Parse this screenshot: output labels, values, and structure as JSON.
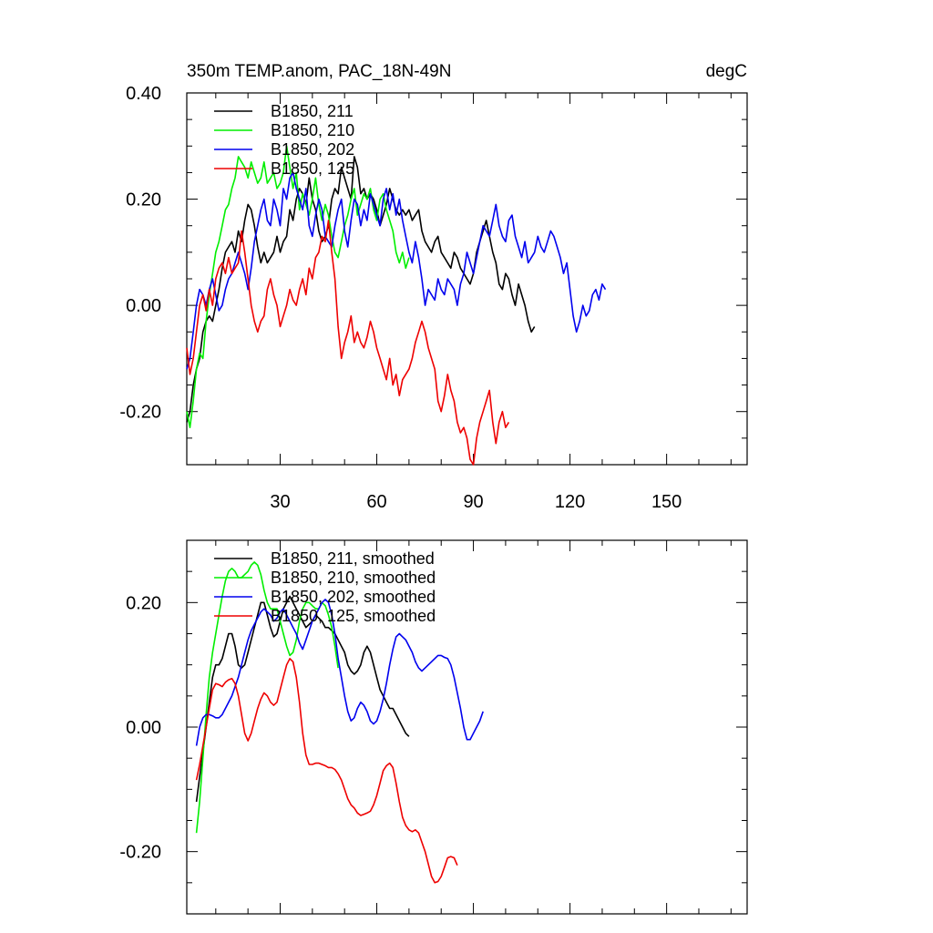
{
  "chart_data": [
    {
      "type": "line",
      "title_left": "350m TEMP.anom, PAC_18N-49N",
      "title_right": "degC",
      "xlim": [
        1,
        175
      ],
      "ylim": [
        -0.3,
        0.4
      ],
      "x_ticks": [
        30,
        60,
        90,
        120,
        150
      ],
      "x_tick_labels": [
        "30",
        "60",
        "90",
        "120",
        "150"
      ],
      "y_ticks": [
        -0.2,
        0.0,
        0.2,
        0.4
      ],
      "y_tick_labels": [
        "-0.20",
        "0.00",
        "0.20",
        "0.40"
      ],
      "legend_placement": "top-left",
      "series": [
        {
          "name": "B1850, 211",
          "color": "#000000",
          "x_start": 1,
          "values": [
            -0.22,
            -0.2,
            -0.15,
            -0.12,
            -0.1,
            -0.05,
            -0.03,
            -0.02,
            -0.03,
            0.0,
            0.03,
            0.07,
            0.1,
            0.11,
            0.12,
            0.1,
            0.14,
            0.12,
            0.16,
            0.19,
            0.18,
            0.15,
            0.11,
            0.08,
            0.1,
            0.08,
            0.09,
            0.1,
            0.13,
            0.1,
            0.12,
            0.13,
            0.18,
            0.16,
            0.2,
            0.22,
            0.21,
            0.19,
            0.24,
            0.2,
            0.18,
            0.14,
            0.12,
            0.13,
            0.15,
            0.2,
            0.22,
            0.21,
            0.26,
            0.24,
            0.22,
            0.2,
            0.28,
            0.26,
            0.21,
            0.22,
            0.2,
            0.21,
            0.2,
            0.18,
            0.15,
            0.17,
            0.19,
            0.22,
            0.2,
            0.18,
            0.17,
            0.18,
            0.17,
            0.18,
            0.16,
            0.17,
            0.18,
            0.14,
            0.12,
            0.11,
            0.1,
            0.12,
            0.13,
            0.1,
            0.09,
            0.08,
            0.07,
            0.1,
            0.09,
            0.07,
            0.06,
            0.05,
            0.04,
            0.06,
            0.1,
            0.12,
            0.14,
            0.16,
            0.13,
            0.1,
            0.08,
            0.04,
            0.03,
            0.06,
            0.05,
            0.02,
            0.0,
            0.04,
            0.02,
            0.0,
            -0.03,
            -0.05,
            -0.04
          ]
        },
        {
          "name": "B1850, 210",
          "color": "#00ee00",
          "x_start": 1,
          "values": [
            -0.2,
            -0.23,
            -0.18,
            -0.12,
            -0.09,
            -0.1,
            -0.03,
            0.02,
            0.06,
            0.1,
            0.12,
            0.15,
            0.18,
            0.19,
            0.22,
            0.24,
            0.28,
            0.27,
            0.26,
            0.24,
            0.27,
            0.25,
            0.23,
            0.24,
            0.27,
            0.23,
            0.24,
            0.25,
            0.22,
            0.23,
            0.25,
            0.3,
            0.26,
            0.22,
            0.25,
            0.18,
            0.21,
            0.19,
            0.17,
            0.2,
            0.24,
            0.19,
            0.16,
            0.19,
            0.17,
            0.13,
            0.1,
            0.09,
            0.12,
            0.15,
            0.17,
            0.2,
            0.22,
            0.17,
            0.19,
            0.21,
            0.2,
            0.22,
            0.18,
            0.16,
            0.2,
            0.21,
            0.18,
            0.16,
            0.14,
            0.1,
            0.08,
            0.1,
            0.07,
            0.09
          ]
        },
        {
          "name": "B1850, 202",
          "color": "#0000ee",
          "x_start": 1,
          "values": [
            -0.12,
            -0.1,
            -0.05,
            0.0,
            0.03,
            0.02,
            0.0,
            0.03,
            0.05,
            0.02,
            -0.01,
            0.0,
            0.03,
            0.05,
            0.06,
            0.08,
            0.1,
            0.08,
            0.06,
            0.03,
            0.07,
            0.12,
            0.15,
            0.18,
            0.2,
            0.16,
            0.15,
            0.2,
            0.18,
            0.15,
            0.22,
            0.2,
            0.24,
            0.25,
            0.22,
            0.2,
            0.18,
            0.22,
            0.15,
            0.13,
            0.17,
            0.2,
            0.18,
            0.13,
            0.12,
            0.11,
            0.15,
            0.18,
            0.2,
            0.14,
            0.11,
            0.16,
            0.2,
            0.19,
            0.15,
            0.18,
            0.16,
            0.21,
            0.19,
            0.17,
            0.15,
            0.2,
            0.22,
            0.18,
            0.21,
            0.17,
            0.2,
            0.16,
            0.13,
            0.1,
            0.08,
            0.12,
            0.09,
            0.05,
            0.0,
            0.03,
            0.02,
            0.01,
            0.05,
            0.03,
            0.02,
            0.05,
            0.04,
            0.03,
            0.0,
            0.04,
            0.06,
            0.1,
            0.08,
            0.06,
            0.09,
            0.12,
            0.15,
            0.14,
            0.13,
            0.16,
            0.19,
            0.15,
            0.13,
            0.12,
            0.16,
            0.17,
            0.13,
            0.11,
            0.09,
            0.12,
            0.08,
            0.09,
            0.1,
            0.13,
            0.11,
            0.1,
            0.12,
            0.14,
            0.13,
            0.11,
            0.09,
            0.06,
            0.08,
            0.03,
            -0.02,
            -0.05,
            -0.03,
            0.0,
            -0.02,
            -0.01,
            0.02,
            0.03,
            0.01,
            0.04,
            0.03
          ]
        },
        {
          "name": "B1850, 125",
          "color": "#ee0000",
          "x_start": 1,
          "values": [
            -0.08,
            -0.13,
            -0.1,
            -0.05,
            0.0,
            0.02,
            -0.01,
            0.03,
            0.0,
            0.05,
            0.07,
            0.08,
            0.06,
            0.09,
            0.06,
            0.07,
            0.08,
            0.14,
            0.1,
            0.05,
            0.0,
            -0.03,
            -0.05,
            -0.03,
            -0.02,
            0.03,
            0.05,
            0.02,
            0.0,
            -0.04,
            -0.02,
            0.0,
            0.03,
            0.01,
            0.0,
            0.03,
            0.05,
            0.02,
            0.07,
            0.05,
            0.09,
            0.1,
            0.13,
            0.12,
            0.16,
            0.1,
            0.05,
            -0.04,
            -0.1,
            -0.07,
            -0.05,
            -0.02,
            -0.07,
            -0.05,
            -0.07,
            -0.08,
            -0.06,
            -0.03,
            -0.05,
            -0.08,
            -0.1,
            -0.12,
            -0.14,
            -0.1,
            -0.15,
            -0.13,
            -0.17,
            -0.14,
            -0.13,
            -0.12,
            -0.1,
            -0.07,
            -0.05,
            -0.03,
            -0.05,
            -0.08,
            -0.1,
            -0.12,
            -0.18,
            -0.2,
            -0.17,
            -0.13,
            -0.16,
            -0.18,
            -0.22,
            -0.24,
            -0.23,
            -0.25,
            -0.29,
            -0.3,
            -0.25,
            -0.22,
            -0.2,
            -0.18,
            -0.16,
            -0.22,
            -0.26,
            -0.22,
            -0.2,
            -0.23,
            -0.22
          ]
        }
      ]
    },
    {
      "type": "line",
      "title_left": "",
      "title_right": "",
      "xlim": [
        1,
        175
      ],
      "ylim": [
        -0.3,
        0.3
      ],
      "x_ticks": [
        30,
        60,
        90,
        120,
        150
      ],
      "x_tick_labels": [],
      "y_ticks": [
        -0.2,
        0.0,
        0.2
      ],
      "y_tick_labels": [
        "-0.20",
        "0.00",
        "0.20"
      ],
      "legend_placement": "top-left",
      "series": [
        {
          "name": "B1850, 211, smoothed",
          "color": "#000000",
          "x_start": 4,
          "values": [
            -0.12,
            -0.08,
            -0.04,
            0.0,
            0.04,
            0.08,
            0.1,
            0.1,
            0.11,
            0.13,
            0.15,
            0.15,
            0.13,
            0.1,
            0.095,
            0.1,
            0.12,
            0.14,
            0.16,
            0.18,
            0.2,
            0.2,
            0.18,
            0.16,
            0.145,
            0.15,
            0.17,
            0.19,
            0.2,
            0.21,
            0.2,
            0.19,
            0.18,
            0.17,
            0.16,
            0.165,
            0.17,
            0.18,
            0.175,
            0.17,
            0.16,
            0.16,
            0.155,
            0.15,
            0.14,
            0.13,
            0.12,
            0.1,
            0.09,
            0.085,
            0.09,
            0.1,
            0.12,
            0.13,
            0.12,
            0.1,
            0.08,
            0.06,
            0.05,
            0.04,
            0.03,
            0.03,
            0.02,
            0.01,
            0.0,
            -0.01,
            -0.015
          ]
        },
        {
          "name": "B1850, 210, smoothed",
          "color": "#00ee00",
          "x_start": 4,
          "values": [
            -0.17,
            -0.12,
            -0.05,
            0.02,
            0.08,
            0.12,
            0.15,
            0.18,
            0.21,
            0.235,
            0.25,
            0.255,
            0.25,
            0.24,
            0.24,
            0.245,
            0.25,
            0.26,
            0.265,
            0.26,
            0.245,
            0.22,
            0.2,
            0.19,
            0.19,
            0.19,
            0.17,
            0.15,
            0.13,
            0.115,
            0.12,
            0.14,
            0.17,
            0.19,
            0.2,
            0.2,
            0.195,
            0.19,
            0.19,
            0.2,
            0.195,
            0.18,
            0.16,
            0.13,
            0.095
          ]
        },
        {
          "name": "B1850, 202, smoothed",
          "color": "#0000ee",
          "x_start": 4,
          "values": [
            -0.03,
            0.0,
            0.015,
            0.02,
            0.02,
            0.018,
            0.015,
            0.015,
            0.02,
            0.03,
            0.04,
            0.05,
            0.065,
            0.08,
            0.1,
            0.12,
            0.14,
            0.155,
            0.165,
            0.175,
            0.185,
            0.19,
            0.185,
            0.18,
            0.17,
            0.175,
            0.185,
            0.19,
            0.18,
            0.17,
            0.16,
            0.15,
            0.135,
            0.125,
            0.14,
            0.155,
            0.17,
            0.18,
            0.19,
            0.2,
            0.205,
            0.2,
            0.18,
            0.15,
            0.11,
            0.08,
            0.05,
            0.025,
            0.01,
            0.015,
            0.03,
            0.04,
            0.035,
            0.025,
            0.01,
            0.005,
            0.01,
            0.025,
            0.045,
            0.07,
            0.1,
            0.125,
            0.145,
            0.15,
            0.145,
            0.14,
            0.13,
            0.12,
            0.105,
            0.095,
            0.09,
            0.095,
            0.1,
            0.105,
            0.11,
            0.115,
            0.115,
            0.112,
            0.11,
            0.1,
            0.08,
            0.055,
            0.03,
            0.0,
            -0.02,
            -0.02,
            -0.01,
            0.0,
            0.01,
            0.025
          ]
        },
        {
          "name": "B1850, 125, smoothed",
          "color": "#ee0000",
          "x_start": 4,
          "values": [
            -0.085,
            -0.06,
            -0.03,
            0.0,
            0.03,
            0.06,
            0.07,
            0.068,
            0.065,
            0.072,
            0.076,
            0.078,
            0.07,
            0.05,
            0.02,
            -0.01,
            -0.022,
            -0.01,
            0.01,
            0.03,
            0.045,
            0.055,
            0.05,
            0.04,
            0.035,
            0.04,
            0.06,
            0.08,
            0.1,
            0.11,
            0.105,
            0.08,
            0.04,
            -0.01,
            -0.045,
            -0.06,
            -0.06,
            -0.058,
            -0.058,
            -0.06,
            -0.062,
            -0.065,
            -0.065,
            -0.068,
            -0.075,
            -0.085,
            -0.1,
            -0.115,
            -0.125,
            -0.13,
            -0.138,
            -0.142,
            -0.14,
            -0.138,
            -0.135,
            -0.125,
            -0.11,
            -0.09,
            -0.07,
            -0.062,
            -0.058,
            -0.065,
            -0.09,
            -0.12,
            -0.145,
            -0.158,
            -0.165,
            -0.168,
            -0.165,
            -0.17,
            -0.185,
            -0.2,
            -0.22,
            -0.24,
            -0.25,
            -0.248,
            -0.24,
            -0.225,
            -0.21,
            -0.208,
            -0.21,
            -0.222
          ]
        }
      ]
    }
  ]
}
